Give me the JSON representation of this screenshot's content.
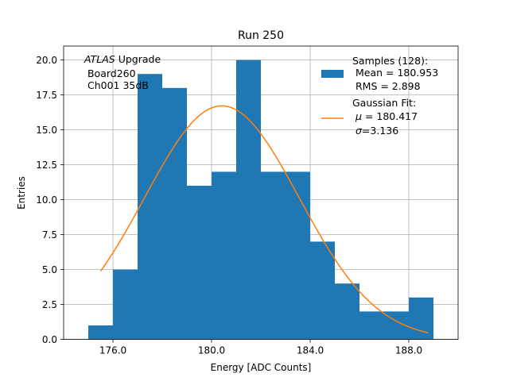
{
  "chart_data": {
    "type": "bar",
    "title": "Run 250",
    "xlabel": "Energy [ADC Counts]",
    "ylabel": "Entries",
    "xlim": [
      174.0,
      190.0
    ],
    "ylim": [
      0.0,
      21.0
    ],
    "grid": true,
    "x_ticks": [
      176.0,
      180.0,
      184.0,
      188.0
    ],
    "x_tick_labels": [
      "176.0",
      "180.0",
      "184.0",
      "188.0"
    ],
    "y_ticks": [
      0.0,
      2.5,
      5.0,
      7.5,
      10.0,
      12.5,
      15.0,
      17.5,
      20.0
    ],
    "y_tick_labels": [
      "0.0",
      "2.5",
      "5.0",
      "7.5",
      "10.0",
      "12.5",
      "15.0",
      "17.5",
      "20.0"
    ],
    "histogram": {
      "name": "Samples",
      "bin_width": 1.0,
      "bin_starts": [
        175,
        176,
        177,
        178,
        179,
        180,
        181,
        182,
        183,
        184,
        185,
        186,
        187,
        188
      ],
      "values": [
        1,
        5,
        19,
        18,
        11,
        12,
        20,
        12,
        12,
        7,
        4,
        2,
        2,
        3
      ],
      "color": "#1f77b4"
    },
    "fit": {
      "name": "Gaussian Fit",
      "mu": 180.417,
      "sigma": 3.136,
      "peak": 16.72,
      "x_range": [
        175.5,
        188.8
      ],
      "color": "#ff7f0e"
    },
    "annotation": {
      "italic": "ATLAS",
      "rest": " Upgrade",
      "line2": " Board260",
      "line3": " Ch001 35dB"
    },
    "legend": {
      "position": "top-right",
      "samples": [
        "Samples (128):",
        " Mean = 180.953",
        " RMS = 2.898"
      ],
      "fit_line1": "Gaussian Fit:",
      "fit_mu_symbol": "μ",
      "fit_mu_value": " = 180.417",
      "fit_sigma_symbol": "σ",
      "fit_sigma_value": "=3.136"
    }
  }
}
